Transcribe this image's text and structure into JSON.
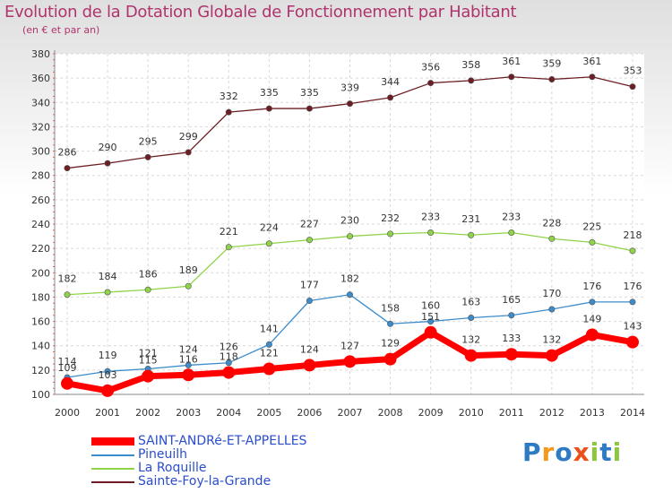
{
  "title": "Evolution de la Dotation Globale de Fonctionnement par Habitant",
  "subtitle": "(en € et par an)",
  "logo": {
    "text": "Proxiti"
  },
  "colors": {
    "saint_andre": "#ff0000",
    "pineuilh": "#3c8ccc",
    "la_roquille": "#8ed34a",
    "sainte_foy": "#6d1e24",
    "title": "#b0336e",
    "legend_text": "#2a4dcb"
  },
  "chart_data": {
    "type": "line",
    "title": "Evolution de la Dotation Globale de Fonctionnement par Habitant",
    "subtitle": "(en € et par an)",
    "xlabel": "",
    "ylabel": "",
    "x": [
      "2000",
      "2001",
      "2002",
      "2003",
      "2004",
      "2005",
      "2006",
      "2007",
      "2008",
      "2009",
      "2010",
      "2011",
      "2012",
      "2013",
      "2014"
    ],
    "ylim": [
      100,
      380
    ],
    "yticks": [
      100,
      120,
      140,
      160,
      180,
      200,
      220,
      240,
      260,
      280,
      300,
      320,
      340,
      360,
      380
    ],
    "grid": true,
    "legend_position": "bottom-left",
    "series": [
      {
        "name": "SAINT-ANDRé-ET-APPELLES",
        "color": "#ff0000",
        "values": [
          109,
          103,
          115,
          116,
          118,
          121,
          124,
          127,
          129,
          151,
          132,
          133,
          132,
          149,
          143
        ]
      },
      {
        "name": "Pineuilh",
        "color": "#3c8ccc",
        "values": [
          114,
          119,
          121,
          124,
          126,
          141,
          177,
          182,
          158,
          160,
          163,
          165,
          170,
          176,
          176
        ]
      },
      {
        "name": "La Roquille",
        "color": "#8ed34a",
        "values": [
          182,
          184,
          186,
          189,
          221,
          224,
          227,
          230,
          232,
          233,
          231,
          233,
          228,
          225,
          218
        ]
      },
      {
        "name": "Sainte-Foy-la-Grande",
        "color": "#6d1e24",
        "values": [
          286,
          290,
          295,
          299,
          332,
          335,
          335,
          339,
          344,
          356,
          358,
          361,
          359,
          361,
          353
        ]
      }
    ]
  }
}
